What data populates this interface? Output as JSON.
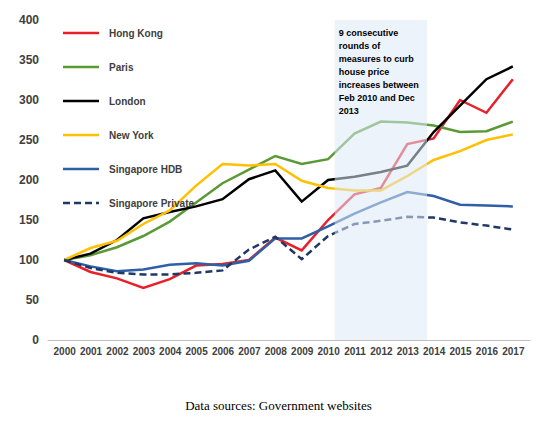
{
  "chart_data": {
    "type": "line",
    "x": [
      2000,
      2001,
      2002,
      2003,
      2004,
      2005,
      2006,
      2007,
      2008,
      2009,
      2010,
      2011,
      2012,
      2013,
      2014,
      2015,
      2016,
      2017
    ],
    "xlim": [
      1999.35,
      2017.65
    ],
    "xticks": [
      2000,
      2001,
      2002,
      2003,
      2004,
      2005,
      2006,
      2007,
      2008,
      2009,
      2010,
      2011,
      2012,
      2013,
      2014,
      2015,
      2016,
      2017
    ],
    "ylim": [
      0,
      400
    ],
    "yticks": [
      0,
      50,
      100,
      150,
      200,
      250,
      300,
      350,
      400
    ],
    "grid": false,
    "legend": "upper left",
    "series": [
      {
        "name": "Hong Kong",
        "color": "#e8202a",
        "line_style": "solid",
        "values": [
          100,
          85,
          77,
          65,
          76,
          93,
          95,
          100,
          128,
          112,
          150,
          182,
          190,
          245,
          252,
          300,
          284,
          326
        ]
      },
      {
        "name": "Paris",
        "color": "#5a9a34",
        "line_style": "solid",
        "values": [
          100,
          106,
          116,
          130,
          148,
          172,
          196,
          213,
          230,
          220,
          226,
          258,
          273,
          272,
          268,
          260,
          261,
          273
        ]
      },
      {
        "name": "London",
        "color": "#000000",
        "line_style": "solid",
        "values": [
          100,
          108,
          125,
          152,
          160,
          167,
          176,
          201,
          212,
          173,
          200,
          204,
          210,
          218,
          260,
          293,
          326,
          342
        ]
      },
      {
        "name": "New York",
        "color": "#ffc000",
        "line_style": "solid",
        "values": [
          100,
          115,
          124,
          145,
          162,
          193,
          220,
          218,
          220,
          199,
          190,
          187,
          187,
          205,
          225,
          236,
          250,
          257
        ]
      },
      {
        "name": "Singapore HDB",
        "color": "#2f5fa6",
        "line_style": "solid",
        "values": [
          100,
          92,
          86,
          88,
          94,
          96,
          93,
          99,
          127,
          127,
          142,
          158,
          172,
          185,
          180,
          169,
          168,
          167
        ]
      },
      {
        "name": "Singapore Private",
        "color": "#1f3864",
        "line_style": "dashed",
        "values": [
          100,
          90,
          84,
          82,
          82,
          84,
          87,
          113,
          129,
          101,
          130,
          145,
          149,
          154,
          153,
          147,
          143,
          138
        ]
      }
    ],
    "annotation": {
      "text": [
        "9 consecutive",
        "rounds of",
        "measures to curb",
        "house price",
        "increases between",
        "Feb 2010 and Dec",
        "2013"
      ],
      "x": [
        2010.25,
        2013.75
      ]
    },
    "caption": "Data sources: Government websites"
  }
}
